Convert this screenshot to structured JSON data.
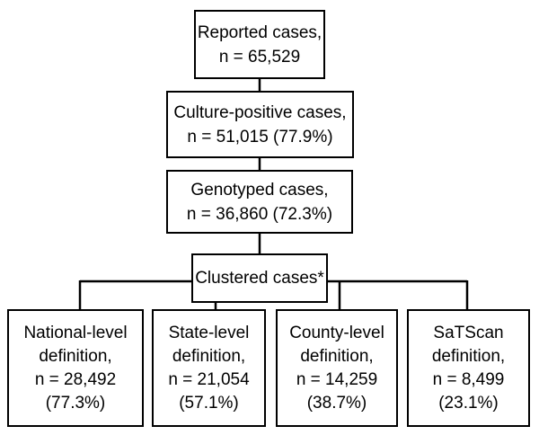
{
  "flowchart": {
    "reported": {
      "label": "Reported cases,",
      "count": "n = 65,529"
    },
    "culture_positive": {
      "label": "Culture-positive cases,",
      "count": "n = 51,015 (77.9%)"
    },
    "genotyped": {
      "label": "Genotyped cases,",
      "count": "n = 36,860 (72.3%)"
    },
    "clustered": {
      "label": "Clustered cases*"
    },
    "definitions": [
      {
        "line1": "National-level",
        "line2": "definition,",
        "count": "n = 28,492",
        "percent": "(77.3%)"
      },
      {
        "line1": "State-level",
        "line2": "definition,",
        "count": "n = 21,054",
        "percent": "(57.1%)"
      },
      {
        "line1": "County-level",
        "line2": "definition,",
        "count": "n = 14,259",
        "percent": "(38.7%)"
      },
      {
        "line1": "SaTScan",
        "line2": "definition,",
        "count": "n = 8,499",
        "percent": "(23.1%)"
      }
    ]
  }
}
